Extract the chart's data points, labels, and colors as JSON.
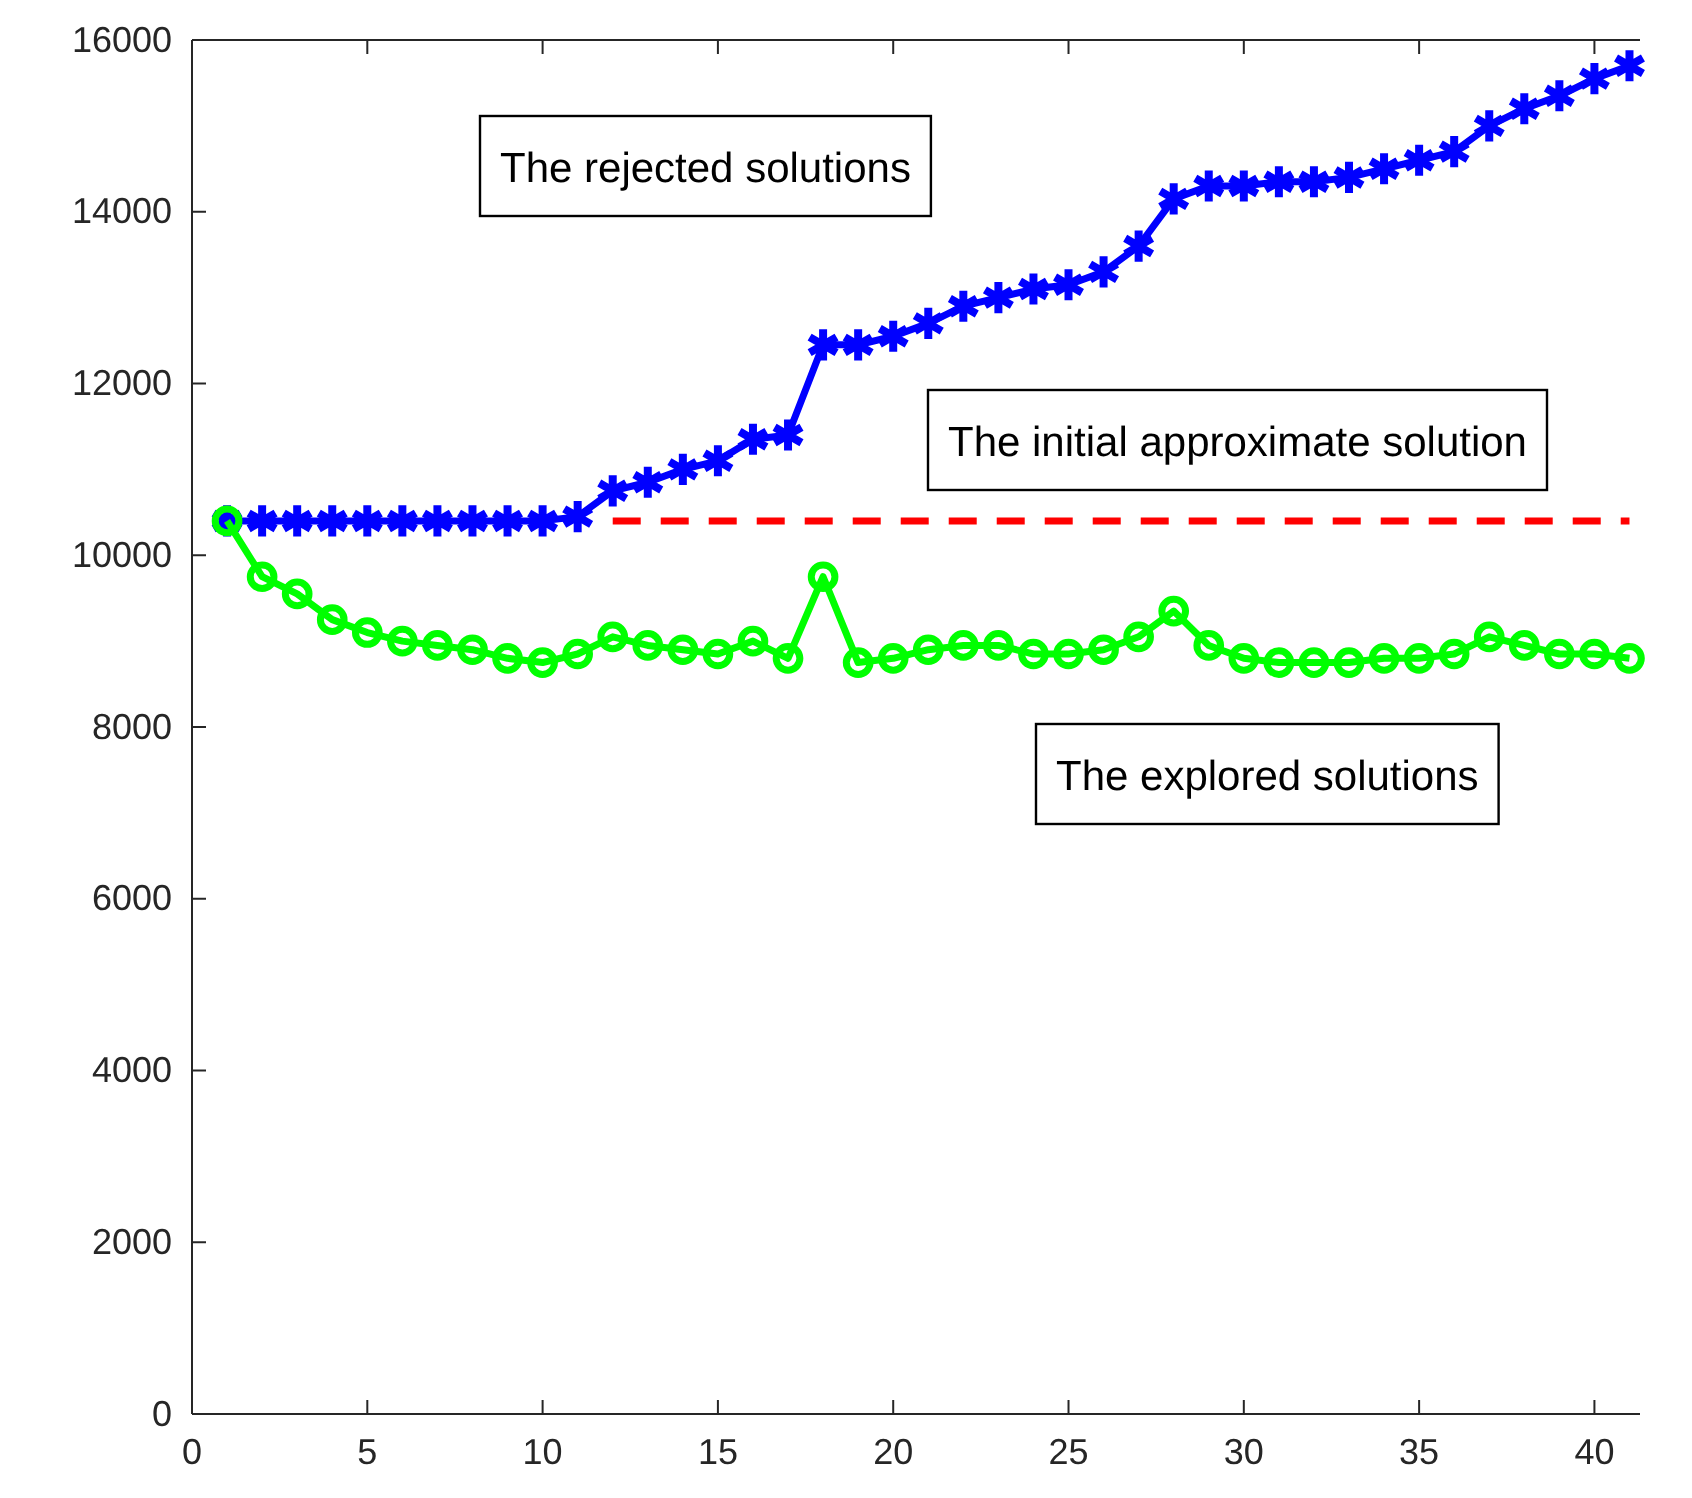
{
  "chart_data": {
    "type": "line",
    "xlim": [
      0,
      41.3
    ],
    "xticks": [
      0,
      5,
      10,
      15,
      20,
      25,
      30,
      35,
      40
    ],
    "ylim": [
      0,
      16000
    ],
    "yticks": [
      0,
      2000,
      4000,
      6000,
      8000,
      10000,
      12000,
      14000,
      16000
    ],
    "grid": false,
    "series": [
      {
        "color": "#0000ff",
        "marker": "cross",
        "line_style": "solid",
        "x": [
          1,
          2,
          3,
          4,
          5,
          6,
          7,
          8,
          9,
          10,
          11,
          12,
          13,
          14,
          15,
          16,
          17,
          18,
          19,
          20,
          21,
          22,
          23,
          24,
          25,
          26,
          27,
          28,
          29,
          30,
          31,
          32,
          33,
          34,
          35,
          36,
          37,
          38,
          39,
          40,
          41
        ],
        "values": [
          10400,
          10400,
          10400,
          10400,
          10400,
          10400,
          10400,
          10400,
          10400,
          10400,
          10450,
          10750,
          10850,
          11000,
          11100,
          11350,
          11400,
          12450,
          12450,
          12550,
          12700,
          12900,
          13000,
          13100,
          13150,
          13300,
          13600,
          14150,
          14300,
          14300,
          14350,
          14350,
          14400,
          14500,
          14600,
          14700,
          15000,
          15200,
          15350,
          15550,
          15700
        ]
      },
      {
        "color": "#00ff00",
        "marker": "circle",
        "line_style": "solid",
        "x": [
          1,
          2,
          3,
          4,
          5,
          6,
          7,
          8,
          9,
          10,
          11,
          12,
          13,
          14,
          15,
          16,
          17,
          18,
          19,
          20,
          21,
          22,
          23,
          24,
          25,
          26,
          27,
          28,
          29,
          30,
          31,
          32,
          33,
          34,
          35,
          36,
          37,
          38,
          39,
          40,
          41
        ],
        "values": [
          10400,
          9750,
          9550,
          9250,
          9100,
          9000,
          8950,
          8900,
          8800,
          8750,
          8850,
          9050,
          8950,
          8900,
          8850,
          9000,
          8800,
          9750,
          8750,
          8800,
          8900,
          8950,
          8950,
          8850,
          8850,
          8900,
          9050,
          9350,
          8950,
          8800,
          8750,
          8750,
          8750,
          8800,
          8800,
          8850,
          9050,
          8950,
          8850,
          8850,
          8800
        ]
      },
      {
        "color": "#ff0000",
        "marker": "none",
        "line_style": "dashed",
        "x": [
          12,
          41
        ],
        "values": [
          10400,
          10400
        ]
      }
    ],
    "annotations": [
      "The rejected solutions",
      "The initial approximate solution",
      "The explored solutions"
    ]
  }
}
